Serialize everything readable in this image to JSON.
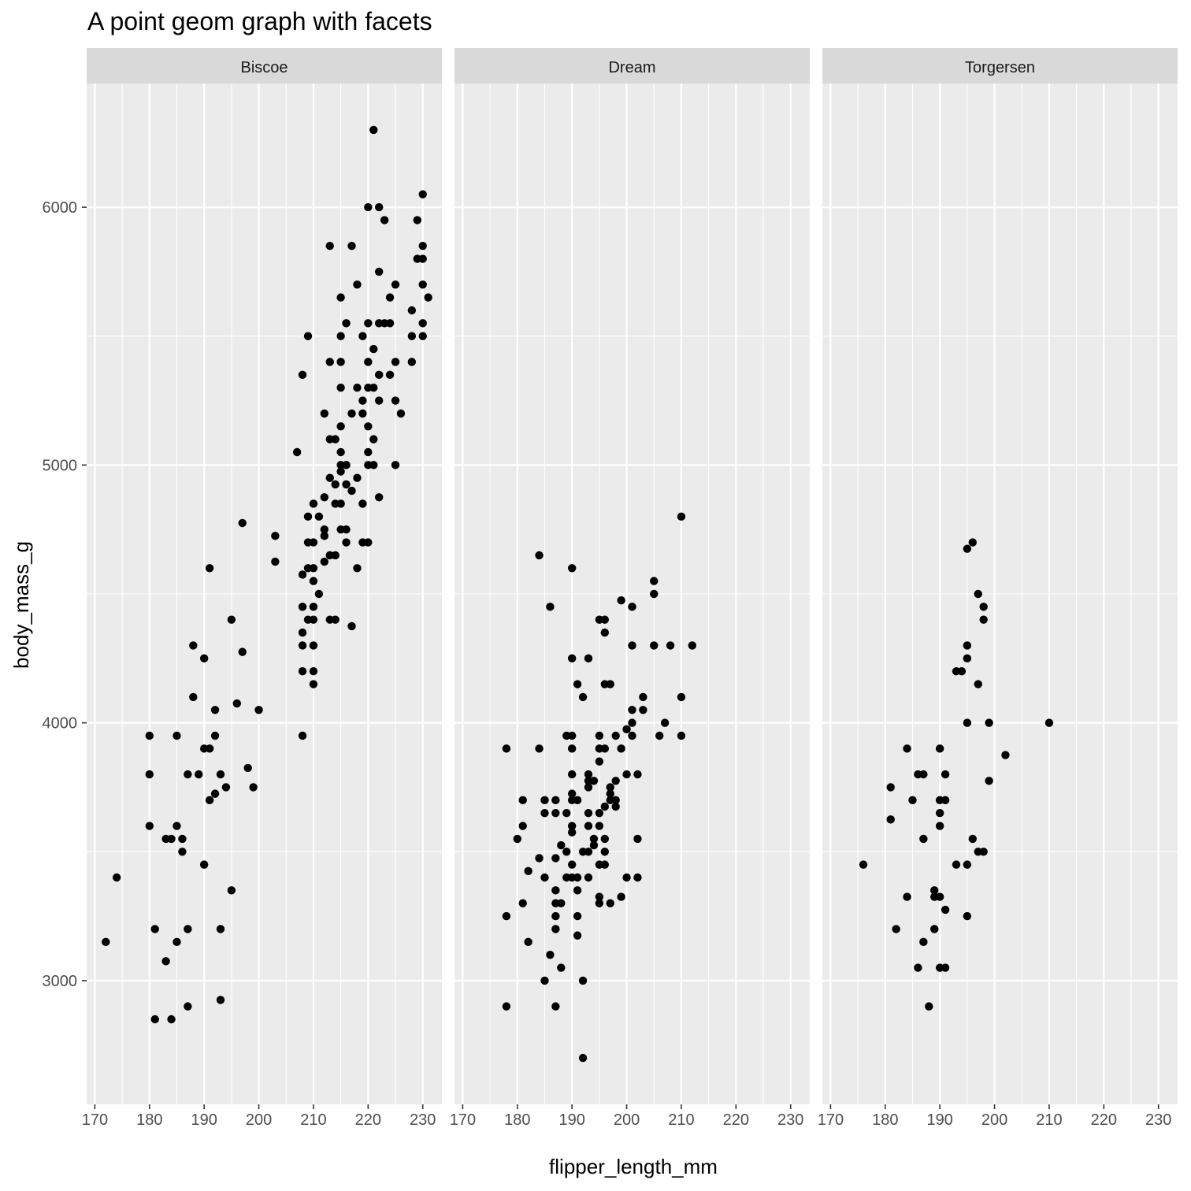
{
  "chart_data": {
    "type": "scatter",
    "title": "A point geom graph with facets",
    "xlabel": "flipper_length_mm",
    "ylabel": "body_mass_g",
    "xlim": [
      168.5,
      233.5
    ],
    "ylim": [
      2520,
      6480
    ],
    "x_ticks": [
      170,
      180,
      190,
      200,
      210,
      220,
      230
    ],
    "y_ticks": [
      3000,
      4000,
      5000,
      6000
    ],
    "grid": true,
    "colors": {
      "panel_bg": "#ebebeb",
      "strip_bg": "#d9d9d9",
      "grid": "#ffffff",
      "point": "#000000"
    },
    "facets": [
      {
        "label": "Biscoe",
        "points": [
          [
            172,
            3150
          ],
          [
            174,
            3400
          ],
          [
            180,
            3950
          ],
          [
            180,
            3800
          ],
          [
            180,
            3600
          ],
          [
            181,
            3200
          ],
          [
            181,
            2850
          ],
          [
            183,
            3550
          ],
          [
            183,
            3075
          ],
          [
            184,
            3550
          ],
          [
            184,
            2850
          ],
          [
            185,
            3950
          ],
          [
            185,
            3600
          ],
          [
            185,
            3150
          ],
          [
            186,
            3550
          ],
          [
            186,
            3500
          ],
          [
            187,
            3800
          ],
          [
            187,
            3200
          ],
          [
            187,
            2900
          ],
          [
            188,
            4300
          ],
          [
            188,
            4100
          ],
          [
            189,
            3800
          ],
          [
            190,
            4250
          ],
          [
            190,
            3900
          ],
          [
            190,
            3450
          ],
          [
            191,
            4600
          ],
          [
            191,
            3900
          ],
          [
            191,
            3700
          ],
          [
            192,
            4050
          ],
          [
            192,
            3950
          ],
          [
            192,
            3725
          ],
          [
            193,
            3800
          ],
          [
            193,
            3200
          ],
          [
            193,
            2925
          ],
          [
            194,
            3750
          ],
          [
            195,
            4400
          ],
          [
            195,
            3350
          ],
          [
            196,
            4075
          ],
          [
            197,
            4775
          ],
          [
            197,
            4275
          ],
          [
            198,
            3825
          ],
          [
            199,
            3750
          ],
          [
            200,
            4050
          ],
          [
            203,
            4725
          ],
          [
            203,
            4625
          ],
          [
            207,
            5050
          ],
          [
            208,
            5350
          ],
          [
            208,
            4575
          ],
          [
            208,
            4450
          ],
          [
            208,
            4350
          ],
          [
            208,
            4300
          ],
          [
            208,
            4200
          ],
          [
            208,
            3950
          ],
          [
            209,
            5500
          ],
          [
            209,
            4800
          ],
          [
            209,
            4700
          ],
          [
            209,
            4600
          ],
          [
            209,
            4400
          ],
          [
            210,
            4850
          ],
          [
            210,
            4700
          ],
          [
            210,
            4600
          ],
          [
            210,
            4550
          ],
          [
            210,
            4450
          ],
          [
            210,
            4400
          ],
          [
            210,
            4300
          ],
          [
            210,
            4200
          ],
          [
            210,
            4150
          ],
          [
            211,
            4800
          ],
          [
            211,
            4500
          ],
          [
            212,
            5200
          ],
          [
            212,
            4875
          ],
          [
            212,
            4750
          ],
          [
            212,
            4725
          ],
          [
            212,
            4625
          ],
          [
            213,
            5850
          ],
          [
            213,
            5400
          ],
          [
            213,
            5100
          ],
          [
            213,
            4950
          ],
          [
            213,
            4650
          ],
          [
            213,
            4400
          ],
          [
            214,
            5100
          ],
          [
            214,
            4925
          ],
          [
            214,
            4850
          ],
          [
            214,
            4650
          ],
          [
            214,
            4400
          ],
          [
            215,
            5650
          ],
          [
            215,
            5500
          ],
          [
            215,
            5400
          ],
          [
            215,
            5300
          ],
          [
            215,
            5150
          ],
          [
            215,
            5050
          ],
          [
            215,
            5000
          ],
          [
            215,
            4975
          ],
          [
            215,
            4850
          ],
          [
            215,
            4750
          ],
          [
            216,
            5550
          ],
          [
            216,
            5000
          ],
          [
            216,
            4925
          ],
          [
            216,
            4750
          ],
          [
            216,
            4700
          ],
          [
            217,
            5850
          ],
          [
            217,
            5200
          ],
          [
            217,
            4900
          ],
          [
            217,
            4375
          ],
          [
            218,
            5700
          ],
          [
            218,
            5300
          ],
          [
            218,
            4950
          ],
          [
            218,
            4600
          ],
          [
            219,
            5500
          ],
          [
            219,
            5250
          ],
          [
            219,
            5200
          ],
          [
            219,
            4850
          ],
          [
            219,
            4700
          ],
          [
            220,
            6000
          ],
          [
            220,
            5550
          ],
          [
            220,
            5400
          ],
          [
            220,
            5300
          ],
          [
            220,
            5150
          ],
          [
            220,
            5050
          ],
          [
            220,
            5000
          ],
          [
            220,
            4700
          ],
          [
            221,
            6300
          ],
          [
            221,
            5450
          ],
          [
            221,
            5300
          ],
          [
            221,
            5100
          ],
          [
            221,
            5000
          ],
          [
            222,
            6000
          ],
          [
            222,
            5750
          ],
          [
            222,
            5550
          ],
          [
            222,
            5350
          ],
          [
            222,
            5250
          ],
          [
            222,
            4875
          ],
          [
            223,
            5950
          ],
          [
            223,
            5550
          ],
          [
            224,
            5650
          ],
          [
            224,
            5550
          ],
          [
            224,
            5350
          ],
          [
            225,
            5700
          ],
          [
            225,
            5400
          ],
          [
            225,
            5250
          ],
          [
            225,
            5000
          ],
          [
            226,
            5200
          ],
          [
            228,
            5600
          ],
          [
            228,
            5500
          ],
          [
            228,
            5400
          ],
          [
            229,
            5950
          ],
          [
            229,
            5800
          ],
          [
            230,
            6050
          ],
          [
            230,
            5850
          ],
          [
            230,
            5800
          ],
          [
            230,
            5700
          ],
          [
            230,
            5550
          ],
          [
            230,
            5500
          ],
          [
            231,
            5650
          ]
        ]
      },
      {
        "label": "Dream",
        "points": [
          [
            178,
            3900
          ],
          [
            178,
            3250
          ],
          [
            178,
            2900
          ],
          [
            180,
            3550
          ],
          [
            181,
            3700
          ],
          [
            181,
            3600
          ],
          [
            181,
            3300
          ],
          [
            182,
            3425
          ],
          [
            182,
            3150
          ],
          [
            184,
            4650
          ],
          [
            184,
            3900
          ],
          [
            184,
            3475
          ],
          [
            185,
            3700
          ],
          [
            185,
            3650
          ],
          [
            185,
            3400
          ],
          [
            185,
            3000
          ],
          [
            186,
            4450
          ],
          [
            186,
            3100
          ],
          [
            187,
            3700
          ],
          [
            187,
            3650
          ],
          [
            187,
            3475
          ],
          [
            187,
            3350
          ],
          [
            187,
            3250
          ],
          [
            187,
            3200
          ],
          [
            187,
            3300
          ],
          [
            187,
            2900
          ],
          [
            188,
            3525
          ],
          [
            188,
            3300
          ],
          [
            188,
            3050
          ],
          [
            189,
            3950
          ],
          [
            189,
            3500
          ],
          [
            189,
            3650
          ],
          [
            189,
            3400
          ],
          [
            190,
            4600
          ],
          [
            190,
            4250
          ],
          [
            190,
            3950
          ],
          [
            190,
            3900
          ],
          [
            190,
            3800
          ],
          [
            190,
            3725
          ],
          [
            190,
            3700
          ],
          [
            190,
            3600
          ],
          [
            190,
            3575
          ],
          [
            190,
            3450
          ],
          [
            190,
            3400
          ],
          [
            191,
            4150
          ],
          [
            191,
            3700
          ],
          [
            191,
            3400
          ],
          [
            191,
            3350
          ],
          [
            191,
            3250
          ],
          [
            191,
            3175
          ],
          [
            192,
            4100
          ],
          [
            192,
            3500
          ],
          [
            192,
            3000
          ],
          [
            192,
            2700
          ],
          [
            193,
            4250
          ],
          [
            193,
            3800
          ],
          [
            193,
            3775
          ],
          [
            193,
            3750
          ],
          [
            193,
            3650
          ],
          [
            193,
            3600
          ],
          [
            193,
            3500
          ],
          [
            193,
            3400
          ],
          [
            194,
            3775
          ],
          [
            194,
            3550
          ],
          [
            194,
            3525
          ],
          [
            195,
            4400
          ],
          [
            195,
            3950
          ],
          [
            195,
            3900
          ],
          [
            195,
            3850
          ],
          [
            195,
            3650
          ],
          [
            195,
            3600
          ],
          [
            195,
            3450
          ],
          [
            195,
            3325
          ],
          [
            195,
            3300
          ],
          [
            196,
            4400
          ],
          [
            196,
            4350
          ],
          [
            196,
            4150
          ],
          [
            196,
            3900
          ],
          [
            196,
            3675
          ],
          [
            196,
            3550
          ],
          [
            196,
            3500
          ],
          [
            196,
            3450
          ],
          [
            197,
            4150
          ],
          [
            197,
            3750
          ],
          [
            197,
            3725
          ],
          [
            197,
            3700
          ],
          [
            197,
            3300
          ],
          [
            198,
            3950
          ],
          [
            198,
            3775
          ],
          [
            198,
            3700
          ],
          [
            198,
            3675
          ],
          [
            199,
            4475
          ],
          [
            199,
            3900
          ],
          [
            199,
            3325
          ],
          [
            200,
            3975
          ],
          [
            200,
            3800
          ],
          [
            200,
            3400
          ],
          [
            201,
            4450
          ],
          [
            201,
            4300
          ],
          [
            201,
            4050
          ],
          [
            201,
            4000
          ],
          [
            201,
            3950
          ],
          [
            202,
            3800
          ],
          [
            202,
            3550
          ],
          [
            202,
            3400
          ],
          [
            203,
            4100
          ],
          [
            203,
            4050
          ],
          [
            205,
            4550
          ],
          [
            205,
            4500
          ],
          [
            205,
            4300
          ],
          [
            206,
            3950
          ],
          [
            207,
            4000
          ],
          [
            208,
            4300
          ],
          [
            210,
            4800
          ],
          [
            210,
            4100
          ],
          [
            210,
            3950
          ],
          [
            212,
            4300
          ]
        ]
      },
      {
        "label": "Torgersen",
        "points": [
          [
            176,
            3450
          ],
          [
            181,
            3750
          ],
          [
            181,
            3625
          ],
          [
            182,
            3200
          ],
          [
            184,
            3900
          ],
          [
            184,
            3325
          ],
          [
            185,
            3700
          ],
          [
            186,
            3800
          ],
          [
            186,
            3050
          ],
          [
            187,
            3800
          ],
          [
            187,
            3550
          ],
          [
            187,
            3150
          ],
          [
            188,
            2900
          ],
          [
            189,
            3350
          ],
          [
            189,
            3325
          ],
          [
            189,
            3200
          ],
          [
            190,
            3900
          ],
          [
            190,
            3700
          ],
          [
            190,
            3650
          ],
          [
            190,
            3600
          ],
          [
            190,
            3325
          ],
          [
            190,
            3050
          ],
          [
            191,
            3800
          ],
          [
            191,
            3700
          ],
          [
            191,
            3275
          ],
          [
            191,
            3050
          ],
          [
            193,
            4200
          ],
          [
            193,
            3450
          ],
          [
            194,
            4200
          ],
          [
            195,
            4675
          ],
          [
            195,
            4300
          ],
          [
            195,
            4250
          ],
          [
            195,
            4000
          ],
          [
            195,
            3450
          ],
          [
            195,
            3250
          ],
          [
            196,
            4700
          ],
          [
            196,
            3550
          ],
          [
            197,
            4500
          ],
          [
            197,
            4150
          ],
          [
            197,
            3500
          ],
          [
            198,
            4450
          ],
          [
            198,
            4400
          ],
          [
            198,
            3500
          ],
          [
            199,
            4000
          ],
          [
            199,
            3775
          ],
          [
            202,
            3875
          ],
          [
            210,
            4000
          ]
        ]
      }
    ]
  }
}
